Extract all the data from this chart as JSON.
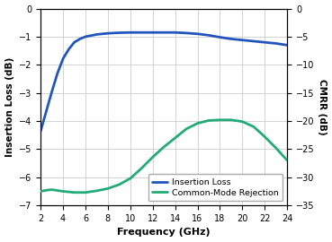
{
  "xlabel": "Frequency (GHz)",
  "ylabel_left": "Insertion Loss (dB)",
  "ylabel_right": "CMRR (dB)",
  "xlim": [
    2,
    24
  ],
  "ylim_left": [
    -7,
    0
  ],
  "ylim_right": [
    -35,
    0
  ],
  "xticks": [
    2,
    4,
    6,
    8,
    10,
    12,
    14,
    16,
    18,
    20,
    22,
    24
  ],
  "yticks_left": [
    0,
    -1,
    -2,
    -3,
    -4,
    -5,
    -6,
    -7
  ],
  "yticks_right": [
    0,
    -5,
    -10,
    -15,
    -20,
    -25,
    -30,
    -35
  ],
  "insertion_loss_x": [
    2,
    2.5,
    3,
    3.5,
    4,
    4.5,
    5,
    5.5,
    6,
    7,
    8,
    9,
    10,
    11,
    12,
    13,
    14,
    15,
    16,
    17,
    18,
    19,
    20,
    21,
    22,
    23,
    24
  ],
  "insertion_loss_y": [
    -4.35,
    -3.65,
    -2.95,
    -2.3,
    -1.78,
    -1.45,
    -1.2,
    -1.08,
    -1.0,
    -0.92,
    -0.88,
    -0.86,
    -0.85,
    -0.85,
    -0.85,
    -0.85,
    -0.85,
    -0.87,
    -0.9,
    -0.95,
    -1.02,
    -1.08,
    -1.12,
    -1.16,
    -1.2,
    -1.24,
    -1.3
  ],
  "cmrr_x": [
    2,
    2.5,
    3,
    4,
    5,
    6,
    7,
    8,
    9,
    10,
    11,
    12,
    13,
    14,
    15,
    16,
    17,
    18,
    19,
    20,
    21,
    22,
    23,
    24
  ],
  "cmrr_y": [
    -32.5,
    -32.3,
    -32.2,
    -32.5,
    -32.7,
    -32.7,
    -32.4,
    -32.0,
    -31.3,
    -30.2,
    -28.4,
    -26.4,
    -24.6,
    -23.0,
    -21.4,
    -20.4,
    -19.9,
    -19.8,
    -19.8,
    -20.1,
    -21.0,
    -22.8,
    -24.8,
    -27.0
  ],
  "line_color_il": "#2255bb",
  "line_color_cmrr": "#22aa77",
  "legend_labels": [
    "Insertion Loss",
    "Common-Mode Rejection"
  ],
  "grid_color": "#cccccc",
  "bg_color": "#ffffff",
  "linewidth": 2.0,
  "label_fontsize": 7.5,
  "tick_fontsize": 7,
  "xlabel_fontsize": 8,
  "legend_fontsize": 6.8
}
